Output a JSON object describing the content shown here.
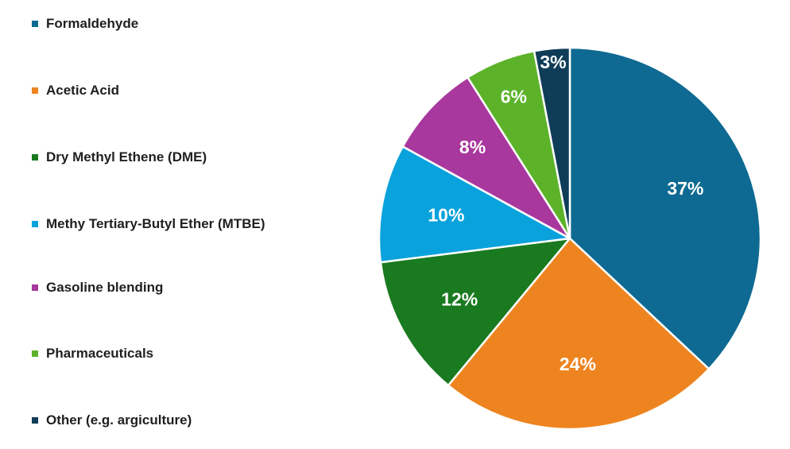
{
  "chart_data": {
    "type": "pie",
    "categories": [
      "Formaldehyde",
      "Acetic Acid",
      "Dry Methyl Ethene (DME)",
      "Methy Tertiary-Butyl Ether (MTBE)",
      "Gasoline blending",
      "Pharmaceuticals",
      "Other (e.g. argiculture)"
    ],
    "values": [
      37,
      24,
      12,
      10,
      8,
      6,
      3
    ],
    "value_labels": [
      "37%",
      "24%",
      "12%",
      "10%",
      "8%",
      "6%",
      "3%"
    ],
    "colors": [
      "#0e6a92",
      "#ee8420",
      "#1a7a20",
      "#0aa2dc",
      "#a8389d",
      "#5cb32a",
      "#0f3d58"
    ],
    "start_angle_deg": 0,
    "direction": "clockwise",
    "legend_position": "left"
  }
}
